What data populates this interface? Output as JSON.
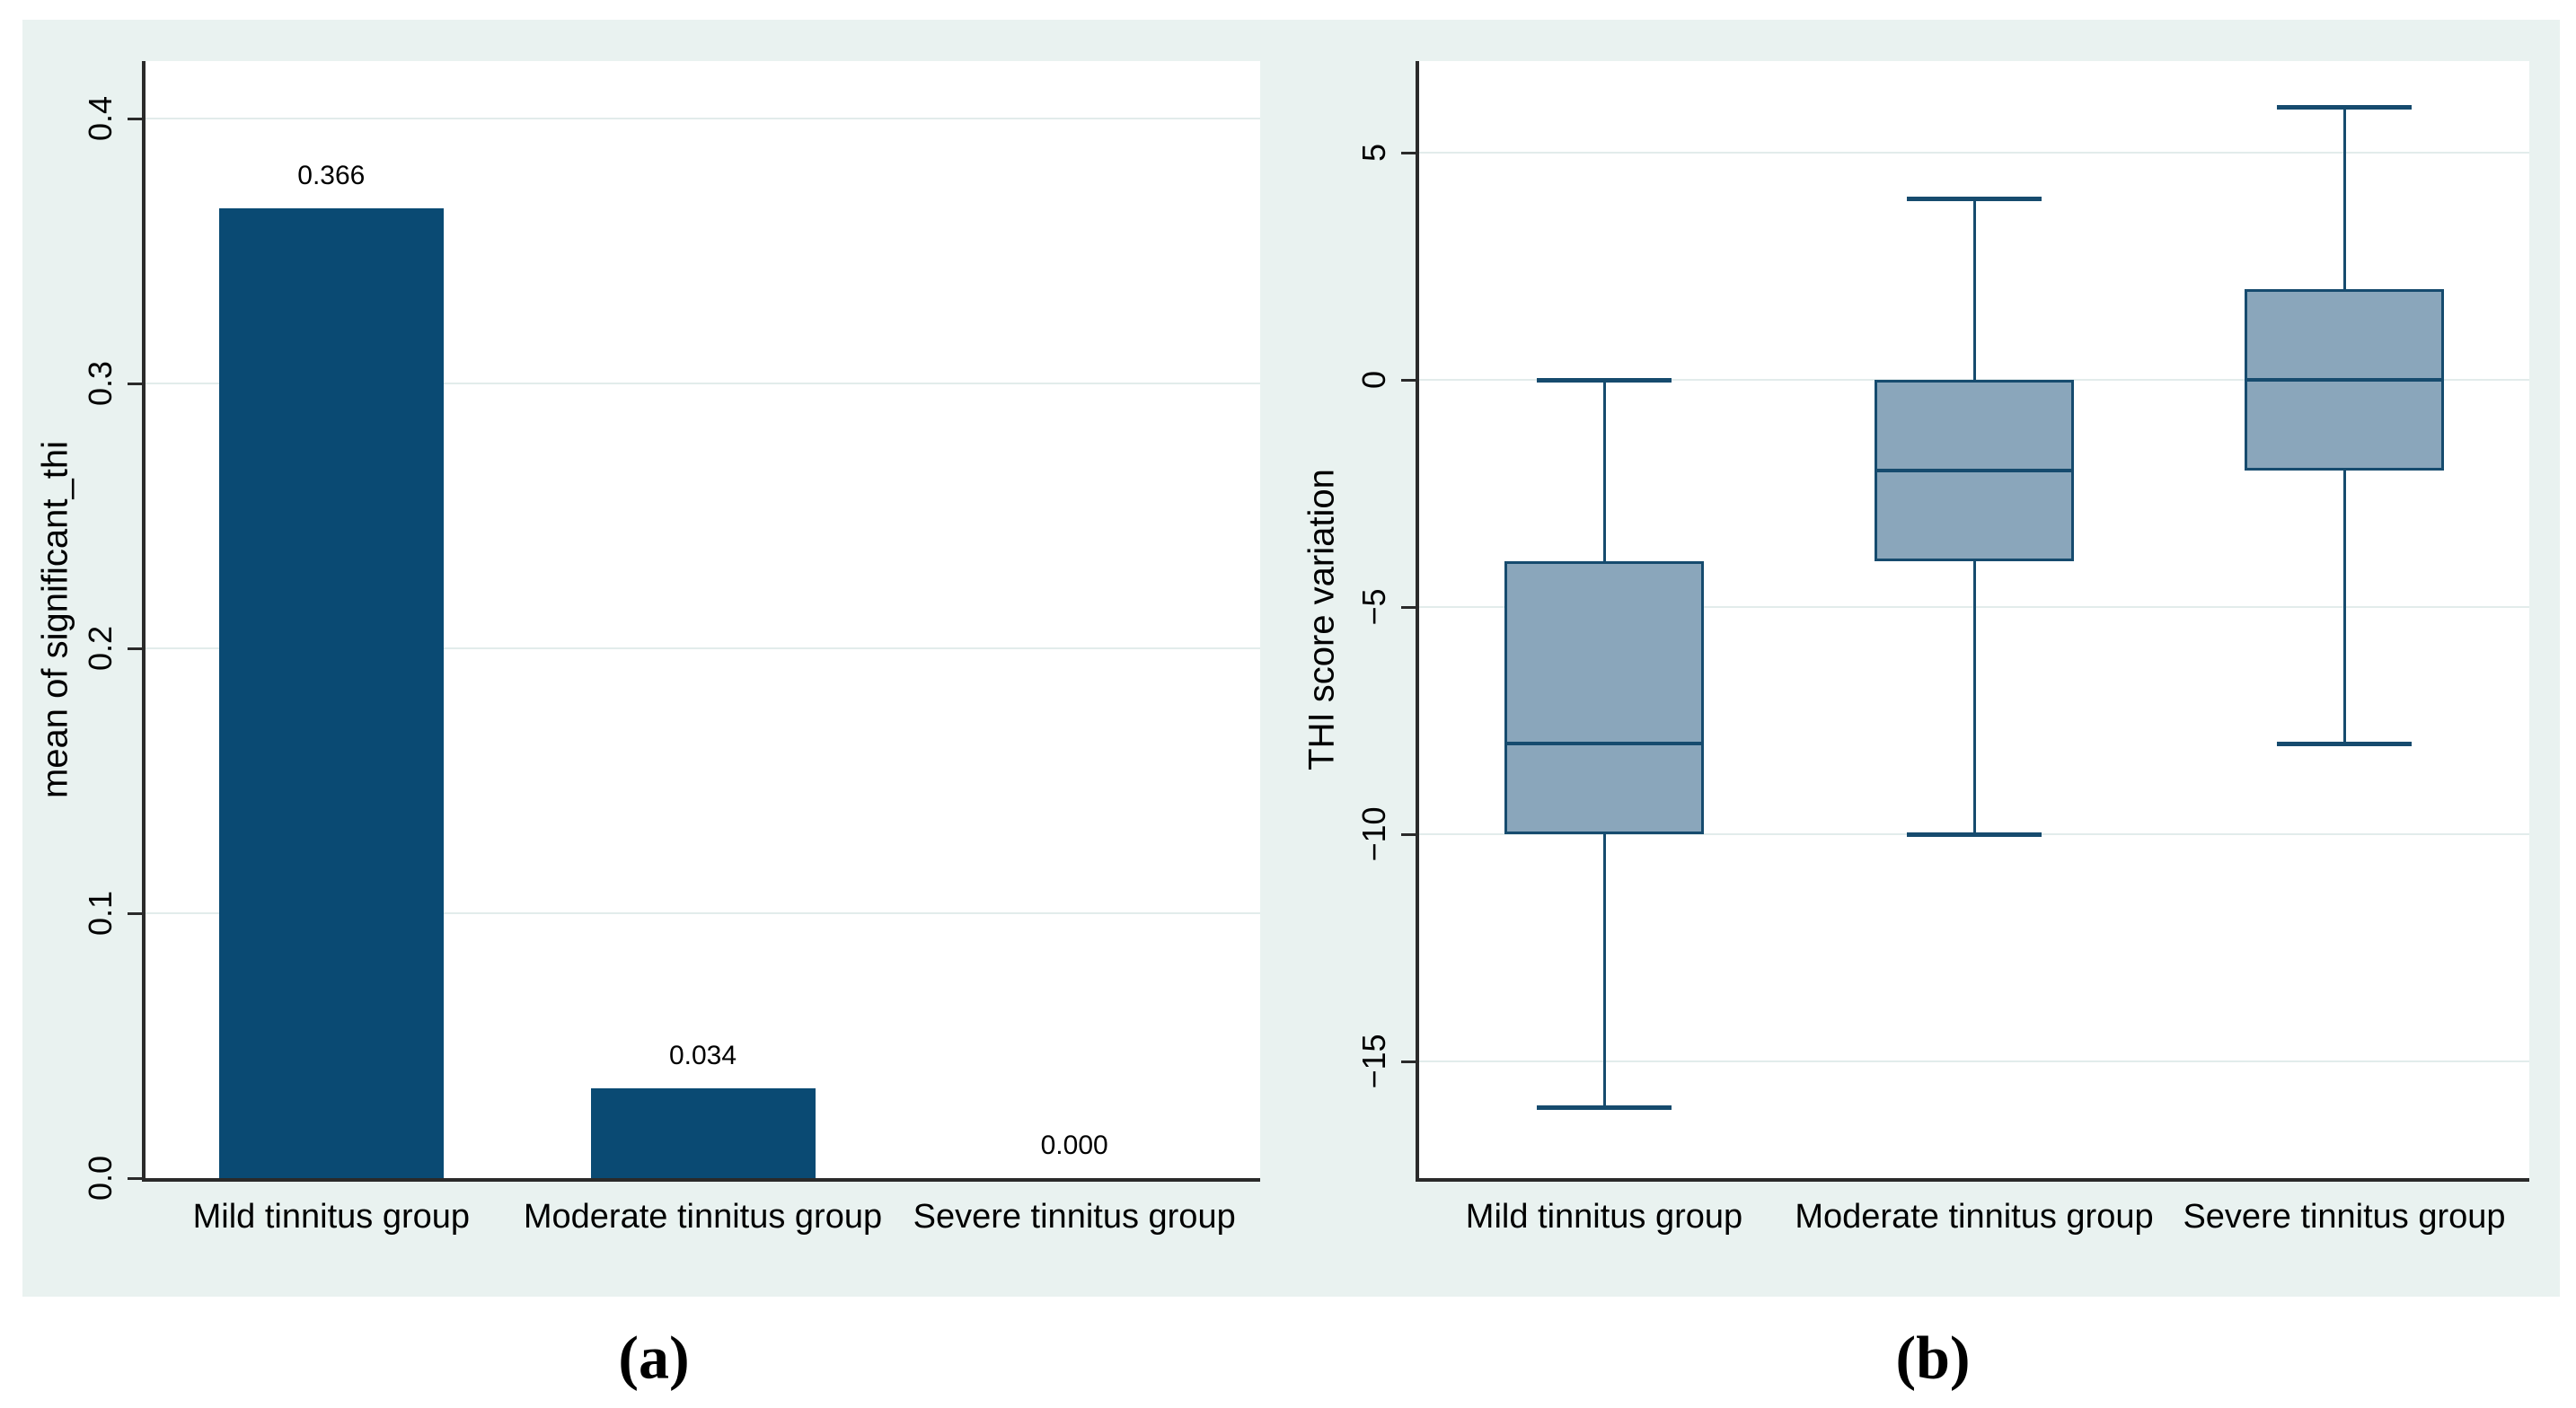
{
  "figure": {
    "caption_a": "(a)",
    "caption_b": "(b)",
    "background_color": "#e9f2f0",
    "plot_background": "#ffffff",
    "gridline_color": "#e2eceb",
    "axis_color": "#2a2a2a",
    "text_color": "#000000"
  },
  "chart_data": [
    {
      "type": "bar",
      "panel": "a",
      "title": "",
      "xlabel": "",
      "ylabel": "mean of significant_thi",
      "categories": [
        "Mild tinnitus group",
        "Moderate tinnitus group",
        "Severe tinnitus group"
      ],
      "values": [
        0.366,
        0.034,
        0.0
      ],
      "value_labels": [
        "0.366",
        "0.034",
        "0.000"
      ],
      "yticks": [
        0.0,
        0.1,
        0.2,
        0.3,
        0.4
      ],
      "ytick_labels": [
        "0.0",
        "0.1",
        "0.2",
        "0.3",
        "0.4"
      ],
      "ylim": [
        0,
        0.42
      ],
      "grid": true,
      "legend": null,
      "bar_color": "#0a4a73"
    },
    {
      "type": "boxplot",
      "panel": "b",
      "title": "",
      "xlabel": "",
      "ylabel": "THI score variation",
      "categories": [
        "Mild tinnitus group",
        "Moderate tinnitus group",
        "Severe tinnitus group"
      ],
      "series": [
        {
          "name": "Mild tinnitus group",
          "whisker_high": 0,
          "q3": -4,
          "median": -8,
          "q1": -10,
          "whisker_low": -16
        },
        {
          "name": "Moderate tinnitus group",
          "whisker_high": 4,
          "q3": 0,
          "median": -2,
          "q1": -4,
          "whisker_low": -10
        },
        {
          "name": "Severe tinnitus group",
          "whisker_high": 6,
          "q3": 2,
          "median": 0,
          "q1": -2,
          "whisker_low": -8
        }
      ],
      "yticks": [
        5,
        0,
        -5,
        -10,
        -15
      ],
      "ytick_labels": [
        "5",
        "0",
        "−5",
        "−10",
        "−15"
      ],
      "ylim": [
        -17.6,
        7.0
      ],
      "grid": true,
      "legend": null,
      "box_fill": "#8aa6bb",
      "box_border": "#164b6e"
    }
  ]
}
